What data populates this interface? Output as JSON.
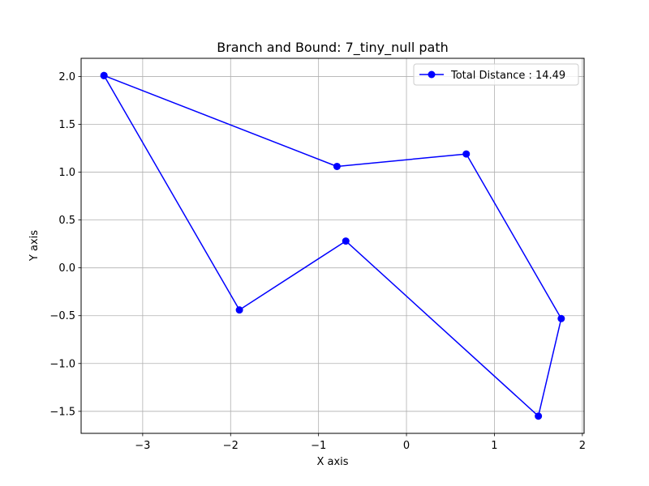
{
  "chart_data": {
    "type": "line",
    "title": "Branch and Bound: 7_tiny_null path",
    "xlabel": "X axis",
    "ylabel": "Y axis",
    "xlim": [
      -3.7,
      2.02
    ],
    "ylim": [
      -1.73,
      2.19
    ],
    "x_ticks": [
      -3,
      -2,
      -1,
      0,
      1,
      2
    ],
    "x_tick_labels": [
      "−3",
      "−2",
      "−1",
      "0",
      "1",
      "2"
    ],
    "y_ticks": [
      -1.5,
      -1.0,
      -0.5,
      0.0,
      0.5,
      1.0,
      1.5,
      2.0
    ],
    "y_tick_labels": [
      "−1.5",
      "−1.0",
      "−0.5",
      "0.0",
      "0.5",
      "1.0",
      "1.5",
      "2.0"
    ],
    "grid": true,
    "legend_position": "top-right",
    "series": [
      {
        "name": "Total Distance : 14.49",
        "color": "#0000ff",
        "marker": "circle",
        "x": [
          -3.44,
          -0.79,
          0.68,
          1.76,
          1.5,
          -0.69,
          -1.9,
          -3.44
        ],
        "y": [
          2.01,
          1.06,
          1.19,
          -0.53,
          -1.55,
          0.28,
          -0.44,
          2.01
        ]
      }
    ]
  }
}
